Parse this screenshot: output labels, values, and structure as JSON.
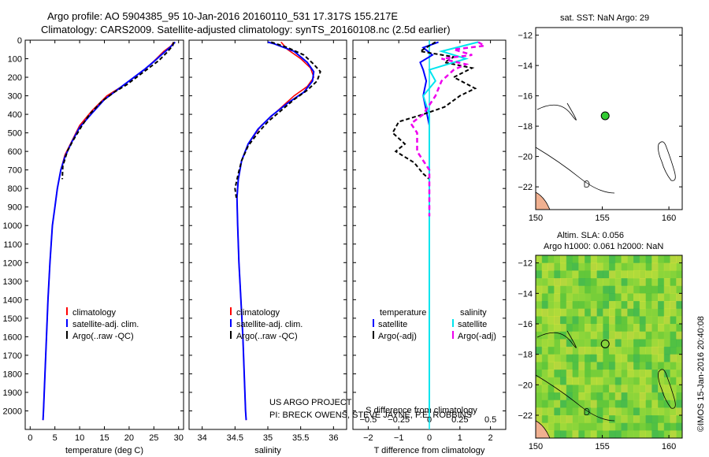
{
  "title": {
    "line1": "Argo profile: AO 5904385_95 10-Jan-2016 20160110_531 17.317S 155.217E",
    "line2": "Climatology: CARS2009. Satellite-adjusted climatology: synTS_20160108.nc (2.5d earlier)"
  },
  "colors": {
    "climatology": "#ff0000",
    "satellite": "#0000ff",
    "argo": "#000000",
    "sal_satellite": "#00e5ee",
    "sal_argo": "#ee00ee",
    "map_dot": "#33cc33",
    "land": "#f0b090"
  },
  "chart_data": [
    {
      "type": "line",
      "panel": "temperature",
      "xlabel": "temperature (deg C)",
      "xlim": [
        -1,
        31
      ],
      "xticks": [
        0,
        5,
        10,
        15,
        20,
        25,
        30
      ],
      "ylim": [
        2100,
        0
      ],
      "yticks": [
        0,
        100,
        200,
        300,
        400,
        500,
        600,
        700,
        800,
        900,
        1000,
        1100,
        1200,
        1300,
        1400,
        1500,
        1600,
        1700,
        1800,
        1900,
        2000
      ],
      "legend": [
        "climatology",
        "satellite-adj. clim.",
        "Argo(..raw -QC)"
      ],
      "series": [
        {
          "name": "climatology",
          "points": [
            [
              29,
              10
            ],
            [
              28.5,
              30
            ],
            [
              27,
              60
            ],
            [
              25.5,
              100
            ],
            [
              23.5,
              150
            ],
            [
              21,
              200
            ],
            [
              18.5,
              250
            ],
            [
              15.5,
              300
            ],
            [
              12.5,
              380
            ],
            [
              10,
              460
            ],
            [
              8.5,
              540
            ],
            [
              7,
              620
            ],
            [
              6.2,
              700
            ],
            [
              5.5,
              800
            ],
            [
              5,
              900
            ],
            [
              4.5,
              1000
            ],
            [
              4,
              1200
            ],
            [
              3.6,
              1400
            ],
            [
              3.3,
              1600
            ],
            [
              3,
              1800
            ],
            [
              2.7,
              2000
            ],
            [
              2.6,
              2050
            ]
          ]
        },
        {
          "name": "satellite-adj. clim.",
          "points": [
            [
              29.3,
              10
            ],
            [
              28.2,
              40
            ],
            [
              26.5,
              80
            ],
            [
              24.8,
              120
            ],
            [
              23,
              160
            ],
            [
              20.5,
              210
            ],
            [
              18,
              260
            ],
            [
              15,
              320
            ],
            [
              12.3,
              400
            ],
            [
              10,
              470
            ],
            [
              8.4,
              550
            ],
            [
              7,
              630
            ],
            [
              6.2,
              700
            ],
            [
              5.5,
              800
            ],
            [
              5,
              900
            ],
            [
              4.5,
              1000
            ],
            [
              4,
              1200
            ],
            [
              3.6,
              1400
            ],
            [
              3.3,
              1600
            ],
            [
              3,
              1800
            ],
            [
              2.7,
              2000
            ],
            [
              2.6,
              2050
            ]
          ]
        },
        {
          "name": "Argo(..raw -QC)",
          "points": [
            [
              29,
              10
            ],
            [
              28.8,
              30
            ],
            [
              27.5,
              70
            ],
            [
              26,
              110
            ],
            [
              24,
              150
            ],
            [
              22,
              190
            ],
            [
              19.5,
              240
            ],
            [
              17,
              280
            ],
            [
              14.5,
              330
            ],
            [
              12,
              400
            ],
            [
              10.5,
              460
            ],
            [
              8.7,
              540
            ],
            [
              7.5,
              600
            ],
            [
              6.6,
              680
            ],
            [
              6.5,
              750
            ]
          ]
        }
      ]
    },
    {
      "type": "line",
      "panel": "salinity",
      "xlabel": "salinity",
      "xlim": [
        33.8,
        36.2
      ],
      "xticks": [
        34,
        34.5,
        35,
        35.5,
        36
      ],
      "ticklabels": [
        "34",
        "34.5",
        "35",
        "35.5",
        "36"
      ],
      "ylim": [
        2100,
        0
      ],
      "legend": [
        "climatology",
        "satellite-adj. clim.",
        "Argo(..raw -QC)"
      ],
      "annotation": [
        "US ARGO PROJECT",
        "PI: BRECK OWENS, STEVE JAYNE, P.E. ROBBINS"
      ],
      "series": [
        {
          "name": "climatology",
          "points": [
            [
              35.2,
              10
            ],
            [
              35.3,
              50
            ],
            [
              35.5,
              100
            ],
            [
              35.65,
              150
            ],
            [
              35.7,
              200
            ],
            [
              35.6,
              250
            ],
            [
              35.4,
              300
            ],
            [
              35.15,
              380
            ],
            [
              34.9,
              460
            ],
            [
              34.7,
              560
            ],
            [
              34.6,
              650
            ],
            [
              34.55,
              750
            ],
            [
              34.53,
              850
            ],
            [
              34.54,
              1000
            ],
            [
              34.56,
              1200
            ],
            [
              34.59,
              1400
            ],
            [
              34.62,
              1600
            ],
            [
              34.64,
              1800
            ],
            [
              34.66,
              2000
            ],
            [
              34.67,
              2050
            ]
          ]
        },
        {
          "name": "satellite-adj. clim.",
          "points": [
            [
              35.0,
              10
            ],
            [
              35.1,
              20
            ],
            [
              35.4,
              60
            ],
            [
              35.6,
              120
            ],
            [
              35.7,
              170
            ],
            [
              35.68,
              220
            ],
            [
              35.55,
              280
            ],
            [
              35.3,
              340
            ],
            [
              35.05,
              410
            ],
            [
              34.85,
              480
            ],
            [
              34.7,
              560
            ],
            [
              34.6,
              650
            ],
            [
              34.55,
              750
            ],
            [
              34.53,
              850
            ],
            [
              34.54,
              1000
            ],
            [
              34.56,
              1200
            ],
            [
              34.59,
              1400
            ],
            [
              34.62,
              1600
            ],
            [
              34.64,
              1800
            ],
            [
              34.66,
              2000
            ],
            [
              34.67,
              2050
            ]
          ]
        },
        {
          "name": "Argo(..raw -QC)",
          "points": [
            [
              35.05,
              10
            ],
            [
              35.3,
              40
            ],
            [
              35.55,
              80
            ],
            [
              35.7,
              130
            ],
            [
              35.8,
              170
            ],
            [
              35.75,
              220
            ],
            [
              35.6,
              270
            ],
            [
              35.4,
              320
            ],
            [
              35.2,
              380
            ],
            [
              35.0,
              440
            ],
            [
              34.85,
              500
            ],
            [
              34.7,
              570
            ],
            [
              34.6,
              650
            ],
            [
              34.55,
              720
            ],
            [
              34.5,
              800
            ],
            [
              34.52,
              850
            ]
          ]
        }
      ]
    },
    {
      "type": "line",
      "panel": "difference",
      "xlabel": "T difference from climatology",
      "xlabel_top": "S difference from climatology",
      "xlim": [
        -2.5,
        2.5
      ],
      "xticks": [
        -2,
        -1,
        0,
        1,
        2
      ],
      "ticklabels": [
        "−2",
        "−1",
        "0",
        "1",
        "2"
      ],
      "sticks": [
        -0.5,
        -0.25,
        0,
        0.25,
        0.5
      ],
      "sticklabels": [
        "−0.5",
        "−0.25",
        "0",
        "0.25",
        "0.5"
      ],
      "ylim": [
        2100,
        0
      ],
      "legend_temperature": [
        "temperature",
        "satellite",
        "Argo(-adj)"
      ],
      "legend_salinity": [
        "salinity",
        "satellite",
        "Argo(-adj)"
      ],
      "series": [
        {
          "name": "T satellite",
          "points": [
            [
              0.3,
              10
            ],
            [
              -0.2,
              40
            ],
            [
              0.1,
              80
            ],
            [
              -0.3,
              120
            ],
            [
              -0.2,
              160
            ],
            [
              -0.1,
              220
            ],
            [
              -0.2,
              300
            ],
            [
              -0.1,
              380
            ],
            [
              0,
              460
            ],
            [
              0,
              600
            ],
            [
              0,
              800
            ],
            [
              0,
              1000
            ],
            [
              0,
              2050
            ]
          ]
        },
        {
          "name": "T Argo(-adj)",
          "points": [
            [
              0.2,
              10
            ],
            [
              -0.3,
              60
            ],
            [
              0.8,
              90
            ],
            [
              0.5,
              120
            ],
            [
              1.4,
              150
            ],
            [
              0.8,
              200
            ],
            [
              1.5,
              260
            ],
            [
              1.0,
              300
            ],
            [
              0.5,
              360
            ],
            [
              -0.2,
              400
            ],
            [
              -1.0,
              440
            ],
            [
              -1.2,
              500
            ],
            [
              -0.8,
              560
            ],
            [
              -1.1,
              600
            ],
            [
              -0.5,
              660
            ],
            [
              -0.2,
              720
            ],
            [
              0,
              750
            ]
          ]
        },
        {
          "name": "S satellite",
          "points": [
            [
              0.4,
              10
            ],
            [
              0.1,
              60
            ],
            [
              0.3,
              100
            ],
            [
              0,
              160
            ],
            [
              0.05,
              220
            ],
            [
              -0.05,
              300
            ],
            [
              0,
              400
            ],
            [
              0,
              500
            ],
            [
              0,
              800
            ],
            [
              0,
              1200
            ],
            [
              0,
              2050
            ]
          ]
        },
        {
          "name": "S Argo(-adj)",
          "points": [
            [
              0.4,
              10
            ],
            [
              0.45,
              30
            ],
            [
              0.2,
              50
            ],
            [
              0.35,
              80
            ],
            [
              0.1,
              100
            ],
            [
              0.3,
              130
            ],
            [
              0.2,
              160
            ],
            [
              0.1,
              220
            ],
            [
              0.05,
              300
            ],
            [
              -0.05,
              400
            ],
            [
              -0.15,
              450
            ],
            [
              -0.1,
              500
            ],
            [
              -0.1,
              600
            ],
            [
              0,
              700
            ],
            [
              0,
              800
            ],
            [
              0,
              900
            ],
            [
              0,
              950
            ]
          ]
        }
      ]
    },
    {
      "type": "scatter",
      "panel": "map_sst",
      "title": "sat. SST: NaN Argo: 29",
      "xlim": [
        150,
        161
      ],
      "ylim": [
        -23.5,
        -11.5
      ],
      "xticks": [
        150,
        155,
        160
      ],
      "yticks": [
        -12,
        -14,
        -16,
        -18,
        -20,
        -22
      ],
      "ticklabels_y": [
        "−12",
        "−14",
        "−16",
        "−18",
        "−20",
        "−22"
      ],
      "points": [
        {
          "lon": 155.217,
          "lat": -17.317
        }
      ]
    },
    {
      "type": "heatmap",
      "panel": "map_sla",
      "title1": "Altim. SLA: 0.056",
      "title2": "Argo h1000: 0.061 h2000: NaN",
      "xlim": [
        150,
        161
      ],
      "ylim": [
        -23.5,
        -11.5
      ],
      "xticks": [
        150,
        155,
        160
      ],
      "yticks": [
        -12,
        -14,
        -16,
        -18,
        -20,
        -22
      ],
      "points": [
        {
          "lon": 155.217,
          "lat": -17.317
        }
      ]
    }
  ],
  "footer": {
    "stamp": "©IMOS 15-Jan-2016 20:40:08"
  }
}
